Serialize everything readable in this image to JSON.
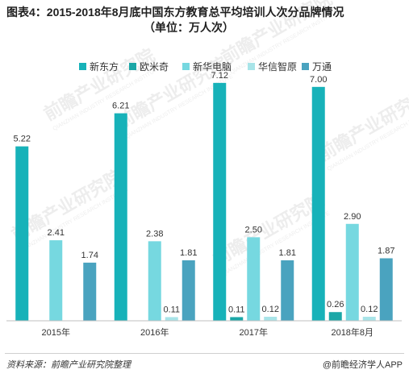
{
  "title": {
    "line1": "图表4：2015-2018年8月底中国东方教育总平均培训人次分品牌情况",
    "line2": "（单位：万人次）"
  },
  "footer": {
    "source": "资料来源：前瞻产业研究院整理",
    "brand": "@前瞻经济学人APP"
  },
  "watermark": {
    "name": "前瞻产业研究院",
    "sub": "QIANZHAN INDUSTRY RESEARCH INSTITUTE"
  },
  "chart_data": {
    "type": "bar",
    "categories": [
      "2015年",
      "2016年",
      "2017年",
      "2018年8月"
    ],
    "series": [
      {
        "name": "新东方",
        "color": "#17b2b9",
        "values": [
          5.22,
          6.21,
          7.12,
          7.0
        ]
      },
      {
        "name": "欧米奇",
        "color": "#1ba7a7",
        "values": [
          null,
          null,
          0.11,
          0.26
        ]
      },
      {
        "name": "新华电脑",
        "color": "#76d8e0",
        "values": [
          2.41,
          2.38,
          2.5,
          2.9
        ]
      },
      {
        "name": "华信智原",
        "color": "#a8e4e8",
        "values": [
          null,
          0.11,
          0.12,
          0.12
        ]
      },
      {
        "name": "万通",
        "color": "#4aa3bf",
        "values": [
          1.74,
          1.81,
          1.81,
          1.87
        ]
      }
    ],
    "ylim": [
      0,
      8
    ],
    "legend": "top",
    "grid": false
  }
}
